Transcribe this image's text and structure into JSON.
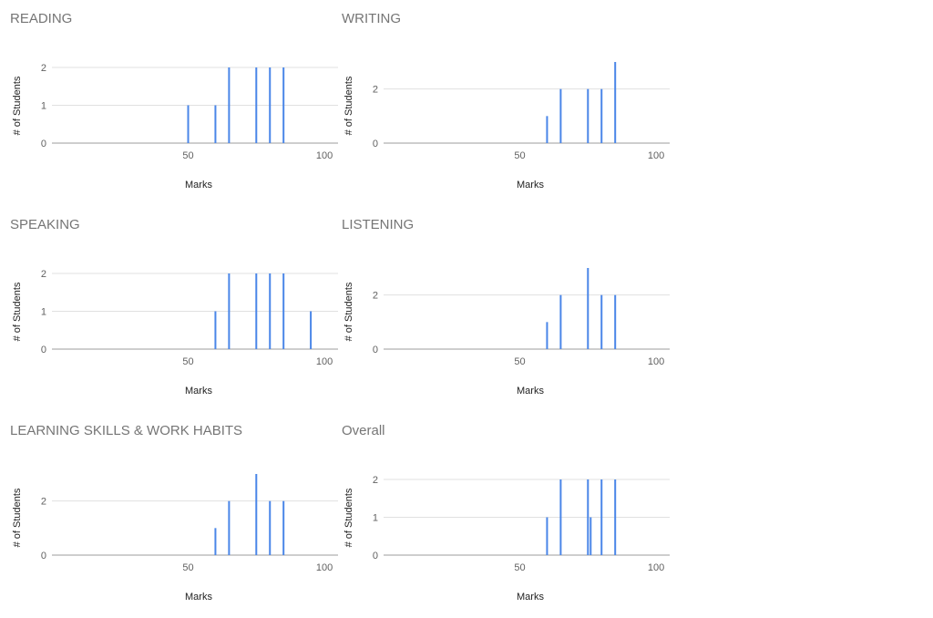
{
  "colors": {
    "bar": "#4a86e8",
    "gridline": "#e0e0e0",
    "baseline": "#9e9e9e",
    "title": "#757575"
  },
  "chart_data": [
    {
      "type": "bar",
      "title": "READING",
      "xlabel": "Marks",
      "ylabel": "# of Students",
      "xlim": [
        0,
        105
      ],
      "ylim": [
        0,
        2
      ],
      "xticks": [
        "50",
        "100"
      ],
      "yticks": [
        "0",
        "1",
        "2"
      ],
      "grid": true,
      "x": [
        50,
        60,
        65,
        75,
        80,
        85
      ],
      "values": [
        1,
        1,
        2,
        2,
        2,
        2
      ]
    },
    {
      "type": "bar",
      "title": "WRITING",
      "xlabel": "Marks",
      "ylabel": "# of Students",
      "xlim": [
        0,
        105
      ],
      "ylim": [
        0,
        3
      ],
      "xticks": [
        "50",
        "100"
      ],
      "yticks": [
        "0",
        "2"
      ],
      "grid": true,
      "x": [
        60,
        65,
        75,
        80,
        85
      ],
      "values": [
        1,
        2,
        2,
        2,
        3
      ]
    },
    {
      "type": "bar",
      "title": "SPEAKING",
      "xlabel": "Marks",
      "ylabel": "# of Students",
      "xlim": [
        0,
        105
      ],
      "ylim": [
        0,
        2
      ],
      "xticks": [
        "50",
        "100"
      ],
      "yticks": [
        "0",
        "1",
        "2"
      ],
      "grid": true,
      "x": [
        60,
        65,
        75,
        80,
        85,
        95
      ],
      "values": [
        1,
        2,
        2,
        2,
        2,
        1
      ]
    },
    {
      "type": "bar",
      "title": "LISTENING",
      "xlabel": "Marks",
      "ylabel": "# of Students",
      "xlim": [
        0,
        105
      ],
      "ylim": [
        0,
        3
      ],
      "xticks": [
        "50",
        "100"
      ],
      "yticks": [
        "0",
        "2"
      ],
      "grid": true,
      "x": [
        60,
        65,
        75,
        80,
        85
      ],
      "values": [
        1,
        2,
        3,
        2,
        2
      ]
    },
    {
      "type": "bar",
      "title": "LEARNING SKILLS & WORK HABITS",
      "xlabel": "Marks",
      "ylabel": "# of Students",
      "xlim": [
        0,
        105
      ],
      "ylim": [
        0,
        3
      ],
      "xticks": [
        "50",
        "100"
      ],
      "yticks": [
        "0",
        "2"
      ],
      "grid": true,
      "x": [
        60,
        65,
        75,
        80,
        85
      ],
      "values": [
        1,
        2,
        3,
        2,
        2
      ]
    },
    {
      "type": "bar",
      "title": "Overall",
      "xlabel": "Marks",
      "ylabel": "# of Students",
      "xlim": [
        0,
        105
      ],
      "ylim": [
        0,
        2
      ],
      "xticks": [
        "50",
        "100"
      ],
      "yticks": [
        "0",
        "1",
        "2"
      ],
      "grid": true,
      "x": [
        60,
        65,
        75,
        76,
        80,
        85
      ],
      "values": [
        1,
        2,
        2,
        1,
        2,
        2
      ]
    }
  ]
}
